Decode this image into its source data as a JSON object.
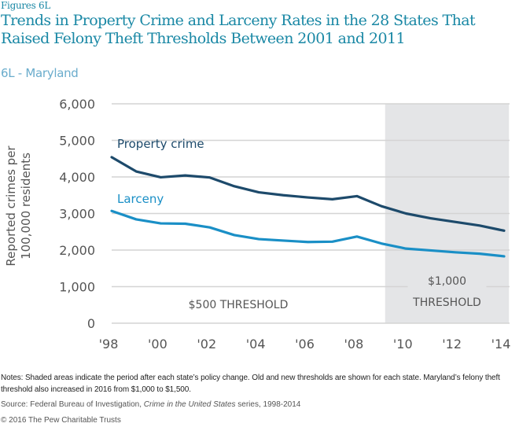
{
  "header": {
    "figure_label": "Figures 6L",
    "title": "Trends in Property Crime and Larceny Rates in the 28 States That Raised Felony Theft Thresholds Between 2001 and 2011",
    "subtitle": "6L - Maryland"
  },
  "colors": {
    "title": "#1a88a5",
    "subtitle": "#6aaccc",
    "property_crime": "#1d4a6b",
    "larceny": "#1a8fc6",
    "shade": "#e4e5e7",
    "grid": "#d4d4d4",
    "axis_text": "#555555"
  },
  "chart_data": {
    "type": "line",
    "title": "6L - Maryland",
    "xlabel": "",
    "ylabel": "Reported crimes per 100,000 residents",
    "x": [
      1998,
      1999,
      2000,
      2001,
      2002,
      2003,
      2004,
      2005,
      2006,
      2007,
      2008,
      2009,
      2010,
      2011,
      2012,
      2013,
      2014
    ],
    "xlim": [
      1998,
      2014
    ],
    "ylim": [
      0,
      6000
    ],
    "x_tick_values": [
      1998,
      2000,
      2002,
      2004,
      2006,
      2008,
      2010,
      2012,
      2014
    ],
    "x_tick_labels": [
      "'98",
      "'00",
      "'02",
      "'04",
      "'06",
      "'08",
      "'10",
      "'12",
      "'14"
    ],
    "y_tick_values": [
      0,
      1000,
      2000,
      3000,
      4000,
      5000,
      6000
    ],
    "y_tick_labels": [
      "0",
      "1,000",
      "2,000",
      "3,000",
      "4,000",
      "5,000",
      "6,000"
    ],
    "grid": true,
    "series": [
      {
        "name": "Property crime",
        "values": [
          4540,
          4150,
          3990,
          4040,
          3985,
          3745,
          3580,
          3500,
          3440,
          3390,
          3475,
          3200,
          3000,
          2870,
          2770,
          2670,
          2530
        ]
      },
      {
        "name": "Larceny",
        "values": [
          3070,
          2840,
          2730,
          2720,
          2620,
          2410,
          2300,
          2260,
          2220,
          2230,
          2370,
          2180,
          2040,
          1990,
          1940,
          1900,
          1830
        ]
      }
    ],
    "shaded_region": {
      "from": 2009.15,
      "to": 2014.2
    },
    "annotations": [
      {
        "text": "$500 THRESHOLD",
        "region": "before policy change"
      },
      {
        "text": "$1,000",
        "region": "after policy change"
      },
      {
        "text": "THRESHOLD",
        "region": "after policy change"
      }
    ],
    "legend": "inline labels near lines (top-left)"
  },
  "footer": {
    "notes": "Notes: Shaded areas indicate the period after each state’s policy change. Old and new thresholds are shown for each state. Maryland’s felony theft threshold also increased in 2016 from $1,000 to $1,500.",
    "source_prefix": "Source: Federal Bureau of Investigation, ",
    "source_italic": "Crime in the United States",
    "source_suffix": " series, 1998-2014",
    "copyright": "© 2016 The Pew Charitable Trusts"
  }
}
